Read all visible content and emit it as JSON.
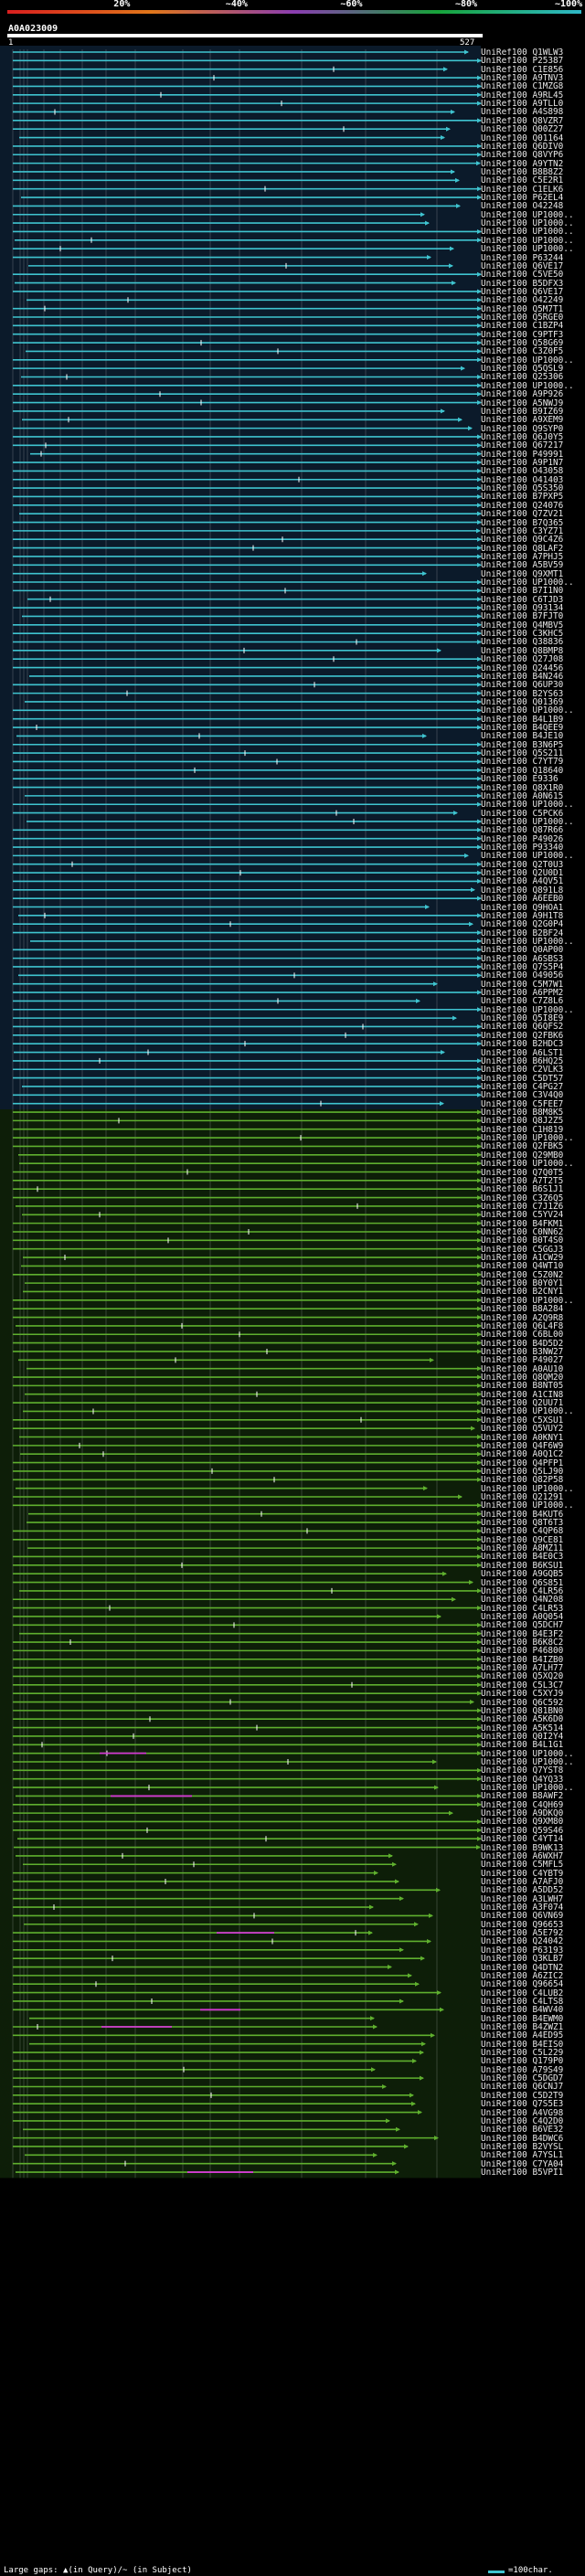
{
  "scale": {
    "ticks": [
      {
        "label": "20%",
        "pos": 0.2
      },
      {
        "label": "~40%",
        "pos": 0.4
      },
      {
        "label": "~60%",
        "pos": 0.6
      },
      {
        "label": "~80%",
        "pos": 0.8
      },
      {
        "label": "~100%",
        "pos": 1.0
      }
    ],
    "gradient_colors": [
      "#d91f1f",
      "#e0761a",
      "#8a3db0",
      "#17a33a",
      "#2fb8c8"
    ]
  },
  "query": {
    "name": "A0A023009",
    "start": "1",
    "end": "527"
  },
  "hits": [
    "UniRef100_Q1WLW3",
    "UniRef100_P25387",
    "UniRef100_C1E856",
    "UniRef100_A9TNV3",
    "UniRef100_C1MZG8",
    "UniRef100_A9RL45",
    "UniRef100_A9TLL0",
    "UniRef100_A4S898",
    "UniRef100_Q8VZR7",
    "UniRef100_Q00Z27",
    "UniRef100_Q01164",
    "UniRef100_Q6DIV0",
    "UniRef100_Q8VYP6",
    "UniRef100_A9YTN2",
    "UniRef100_B8B8Z2",
    "UniRef100_C5E2R1",
    "UniRef100_C1ELK6",
    "UniRef100_P62EL4",
    "UniRef100_O42248",
    "UniRef100_UP1000..",
    "UniRef100_UP1000..",
    "UniRef100_UP1000..",
    "UniRef100_UP1000..",
    "UniRef100_UP1000..",
    "UniRef100_P63244",
    "UniRef100_Q6VE17",
    "UniRef100_C5VE50",
    "UniRef100_B5DFX3",
    "UniRef100_Q6VE17",
    "UniRef100_O42249",
    "UniRef100_Q5M7T1",
    "UniRef100_Q5RGE0",
    "UniRef100_C1BZP4",
    "UniRef100_C9PTF3",
    "UniRef100_Q58G69",
    "UniRef100_C3Z0F5",
    "UniRef100_UP1000..",
    "UniRef100_Q5QSL9",
    "UniRef100_Q25306",
    "UniRef100_UP1000..",
    "UniRef100_A9P926",
    "UniRef100_A5NWJ9",
    "UniRef100_B9IZ69",
    "UniRef100_A9XEM9",
    "UniRef100_Q9SYP0",
    "UniRef100_Q6J0Y5",
    "UniRef100_Q67217",
    "UniRef100_P49991",
    "UniRef100_A9P1N7",
    "UniRef100_O43058",
    "UniRef100_O41403",
    "UniRef100_Q5S350",
    "UniRef100_B7PXP5",
    "UniRef100_Q24076",
    "UniRef100_Q7ZV21",
    "UniRef100_B7Q365",
    "UniRef100_C3YZ71",
    "UniRef100_Q9C4Z6",
    "UniRef100_Q8LAF2",
    "UniRef100_A7PHJ5",
    "UniRef100_A5BV59",
    "UniRef100_Q9XMT1",
    "UniRef100_UP1000..",
    "UniRef100_B7I1N0",
    "UniRef100_C6TJD3",
    "UniRef100_Q93134",
    "UniRef100_B7FJT0",
    "UniRef100_Q4MBV5",
    "UniRef100_C3KHC5",
    "UniRef100_Q38836",
    "UniRef100_Q8BMP8",
    "UniRef100_Q27J08",
    "UniRef100_Q24456",
    "UniRef100_B4N246",
    "UniRef100_Q6UP30",
    "UniRef100_B2YS63",
    "UniRef100_Q01369",
    "UniRef100_UP1000..",
    "UniRef100_B4L1B9",
    "UniRef100_B4QEE9",
    "UniRef100_B4JE10",
    "UniRef100_B3N6P5",
    "UniRef100_Q5S211",
    "UniRef100_C7YT79",
    "UniRef100_Q18640",
    "UniRef100_E9336",
    "UniRef100_Q8X1R0",
    "UniRef100_A0N615",
    "UniRef100_UP1000..",
    "UniRef100_C5PCK6",
    "UniRef100_UP1000..",
    "UniRef100_Q87R66",
    "UniRef100_P49026",
    "UniRef100_P93340",
    "UniRef100_UP1000..",
    "UniRef100_Q2T0U3",
    "UniRef100_Q2U0D1",
    "UniRef100_A4QV51",
    "UniRef100_Q891L8",
    "UniRef100_A6EEB0",
    "UniRef100_Q9HOA1",
    "UniRef100_A9H1T8",
    "UniRef100_Q2G0P4",
    "UniRef100_B2BF24",
    "UniRef100_UP1000..",
    "UniRef100_Q0AP00",
    "UniRef100_A6SBS3",
    "UniRef100_Q7S5P4",
    "UniRef100_O49056",
    "UniRef100_C5M7W1",
    "UniRef100_A6PPM2",
    "UniRef100_C7Z8L6",
    "UniRef100_UP1000..",
    "UniRef100_Q5I8E9",
    "UniRef100_Q6QFS2",
    "UniRef100_Q2FBK6",
    "UniRef100_B2HDC3",
    "UniRef100_A6LST1",
    "UniRef100_B6HQ25",
    "UniRef100_C2VLK3",
    "UniRef100_C5DT57",
    "UniRef100_C4PG27",
    "UniRef100_C3V4Q0",
    "UniRef100_C5FEE7",
    "UniRef100_B8M8K5",
    "UniRef100_Q8J2Z5",
    "UniRef100_C1H819",
    "UniRef100_UP1000..",
    "UniRef100_Q2FBK5",
    "UniRef100_Q29MB0",
    "UniRef100_UP1000..",
    "UniRef100_Q7Q0T5",
    "UniRef100_A7T2T5",
    "UniRef100_B6S1J1",
    "UniRef100_C3Z6Q5",
    "UniRef100_C7J1Z6",
    "UniRef100_C5YV24",
    "UniRef100_B4FKM1",
    "UniRef100_C0NN62",
    "UniRef100_B0T4S0",
    "UniRef100_C5GGJ3",
    "UniRef100_A1CW29",
    "UniRef100_Q4WT10",
    "UniRef100_C5Z0N2",
    "UniRef100_B0Y0Y1",
    "UniRef100_B2CNY1",
    "UniRef100_UP1000..",
    "UniRef100_B8A284",
    "UniRef100_A2Q9R8",
    "UniRef100_Q6L4F8",
    "UniRef100_C6BL00",
    "UniRef100_B4D5D2",
    "UniRef100_B3NW27",
    "UniRef100_P49027",
    "UniRef100_A0AU10",
    "UniRef100_Q8QM20",
    "UniRef100_B8NT05",
    "UniRef100_A1CIN8",
    "UniRef100_Q2UU71",
    "UniRef100_UP1000..",
    "UniRef100_C5XSU1",
    "UniRef100_Q5VUY2",
    "UniRef100_A0KNY1",
    "UniRef100_Q4F6W9",
    "UniRef100_A0Q1C2",
    "UniRef100_Q4PFP1",
    "UniRef100_Q5LJ90",
    "UniRef100_Q82P58",
    "UniRef100_UP1000..",
    "UniRef100_Q21291",
    "UniRef100_UP1000..",
    "UniRef100_B4KUT6",
    "UniRef100_Q8T6T3",
    "UniRef100_C4QP68",
    "UniRef100_Q9CE81",
    "UniRef100_A8MZ11",
    "UniRef100_B4E0C3",
    "UniRef100_B6KSU1",
    "UniRef100_A9GQB5",
    "UniRef100_Q6S851",
    "UniRef100_C4LR56",
    "UniRef100_Q4N208",
    "UniRef100_C4LR53",
    "UniRef100_A0Q054",
    "UniRef100_Q5DCH7",
    "UniRef100_B4E3F2",
    "UniRef100_B6K8C2",
    "UniRef100_P46800",
    "UniRef100_B4IZB0",
    "UniRef100_A7LH77",
    "UniRef100_Q5XQ20",
    "UniRef100_C5L3C7",
    "UniRef100_C5XYJ9",
    "UniRef100_Q6C592",
    "UniRef100_Q81BN0",
    "UniRef100_A5K6D0",
    "UniRef100_A5K514",
    "UniRef100_Q0I2Y4",
    "UniRef100_B4L1G1",
    "UniRef100_UP1000..",
    "UniRef100_UP1000..",
    "UniRef100_Q7YST8",
    "UniRef100_Q4YQ33",
    "UniRef100_UP1000..",
    "UniRef100_B8AWF2",
    "UniRef100_C4QH69",
    "UniRef100_A9DKQ0",
    "UniRef100_Q9XM80",
    "UniRef100_Q59S46",
    "UniRef100_C4YT14",
    "UniRef100_B9WK13",
    "UniRef100_A6WXH7",
    "UniRef100_C5MFL5",
    "UniRef100_C4YBT9",
    "UniRef100_A7AFJ0",
    "UniRef100_A5DD52",
    "UniRef100_A3LWH7",
    "UniRef100_A3F074",
    "UniRef100_Q6VN69",
    "UniRef100_Q96653",
    "UniRef100_A5E792",
    "UniRef100_Q24042",
    "UniRef100_P63193",
    "UniRef100_Q3KLB7",
    "UniRef100_Q4DTN2",
    "UniRef100_A6ZIC2",
    "UniRef100_Q96654",
    "UniRef100_C4LUB2",
    "UniRef100_C4LTS8",
    "UniRef100_B4WV40",
    "UniRef100_B4EWM0",
    "UniRef100_B4ZWZ1",
    "UniRef100_A4ED95",
    "UniRef100_B4EIS0",
    "UniRef100_C5L229",
    "UniRef100_Q179P0",
    "UniRef100_A79S49",
    "UniRef100_C5DGD7",
    "UniRef100_Q6CNJ7",
    "UniRef100_C5D2T9",
    "UniRef100_Q7S5E3",
    "UniRef100_A4VG98",
    "UniRef100_C4Q2D0",
    "UniRef100_B6VE32",
    "UniRef100_B4DWC6",
    "UniRef100_B2VYSL",
    "UniRef100_A7YSL1",
    "UniRef100_C7YA04",
    "UniRef100_B5VPI1"
  ],
  "colors": {
    "high": "#3fc4d0",
    "mid": "#5fb02e",
    "gap_query": "#d23ad2",
    "background_high": "#0b1a2a",
    "background_mid": "#0d1e08"
  },
  "legend": {
    "text": "Large gaps: ▲(in Query)/~ (in Subject)",
    "scale_label": "=100char."
  }
}
